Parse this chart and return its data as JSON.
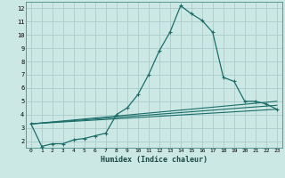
{
  "title": "",
  "xlabel": "Humidex (Indice chaleur)",
  "ylabel": "",
  "bg_color": "#cce8e4",
  "grid_color": "#aaccca",
  "line_color": "#1a6e6a",
  "xlim": [
    -0.5,
    23.5
  ],
  "ylim": [
    1.5,
    12.5
  ],
  "yticks": [
    2,
    3,
    4,
    5,
    6,
    7,
    8,
    9,
    10,
    11,
    12
  ],
  "xticks": [
    0,
    1,
    2,
    3,
    4,
    5,
    6,
    7,
    8,
    9,
    10,
    11,
    12,
    13,
    14,
    15,
    16,
    17,
    18,
    19,
    20,
    21,
    22,
    23
  ],
  "series_main": {
    "x": [
      0,
      1,
      2,
      3,
      4,
      5,
      6,
      7,
      8,
      9,
      10,
      11,
      12,
      13,
      14,
      15,
      16,
      17,
      18,
      19,
      20,
      21,
      22,
      23
    ],
    "y": [
      3.3,
      1.6,
      1.8,
      1.8,
      2.1,
      2.2,
      2.4,
      2.6,
      4.0,
      4.5,
      5.5,
      7.0,
      8.8,
      10.2,
      12.2,
      11.6,
      11.1,
      10.2,
      6.8,
      6.5,
      5.0,
      5.0,
      4.8,
      4.4
    ]
  },
  "series_lines": [
    {
      "x0": 0,
      "y0": 3.3,
      "x1": 23,
      "y1": 4.4
    },
    {
      "x0": 0,
      "y0": 3.3,
      "x1": 23,
      "y1": 5.0
    },
    {
      "x0": 0,
      "y0": 3.3,
      "x1": 23,
      "y1": 4.7
    }
  ]
}
